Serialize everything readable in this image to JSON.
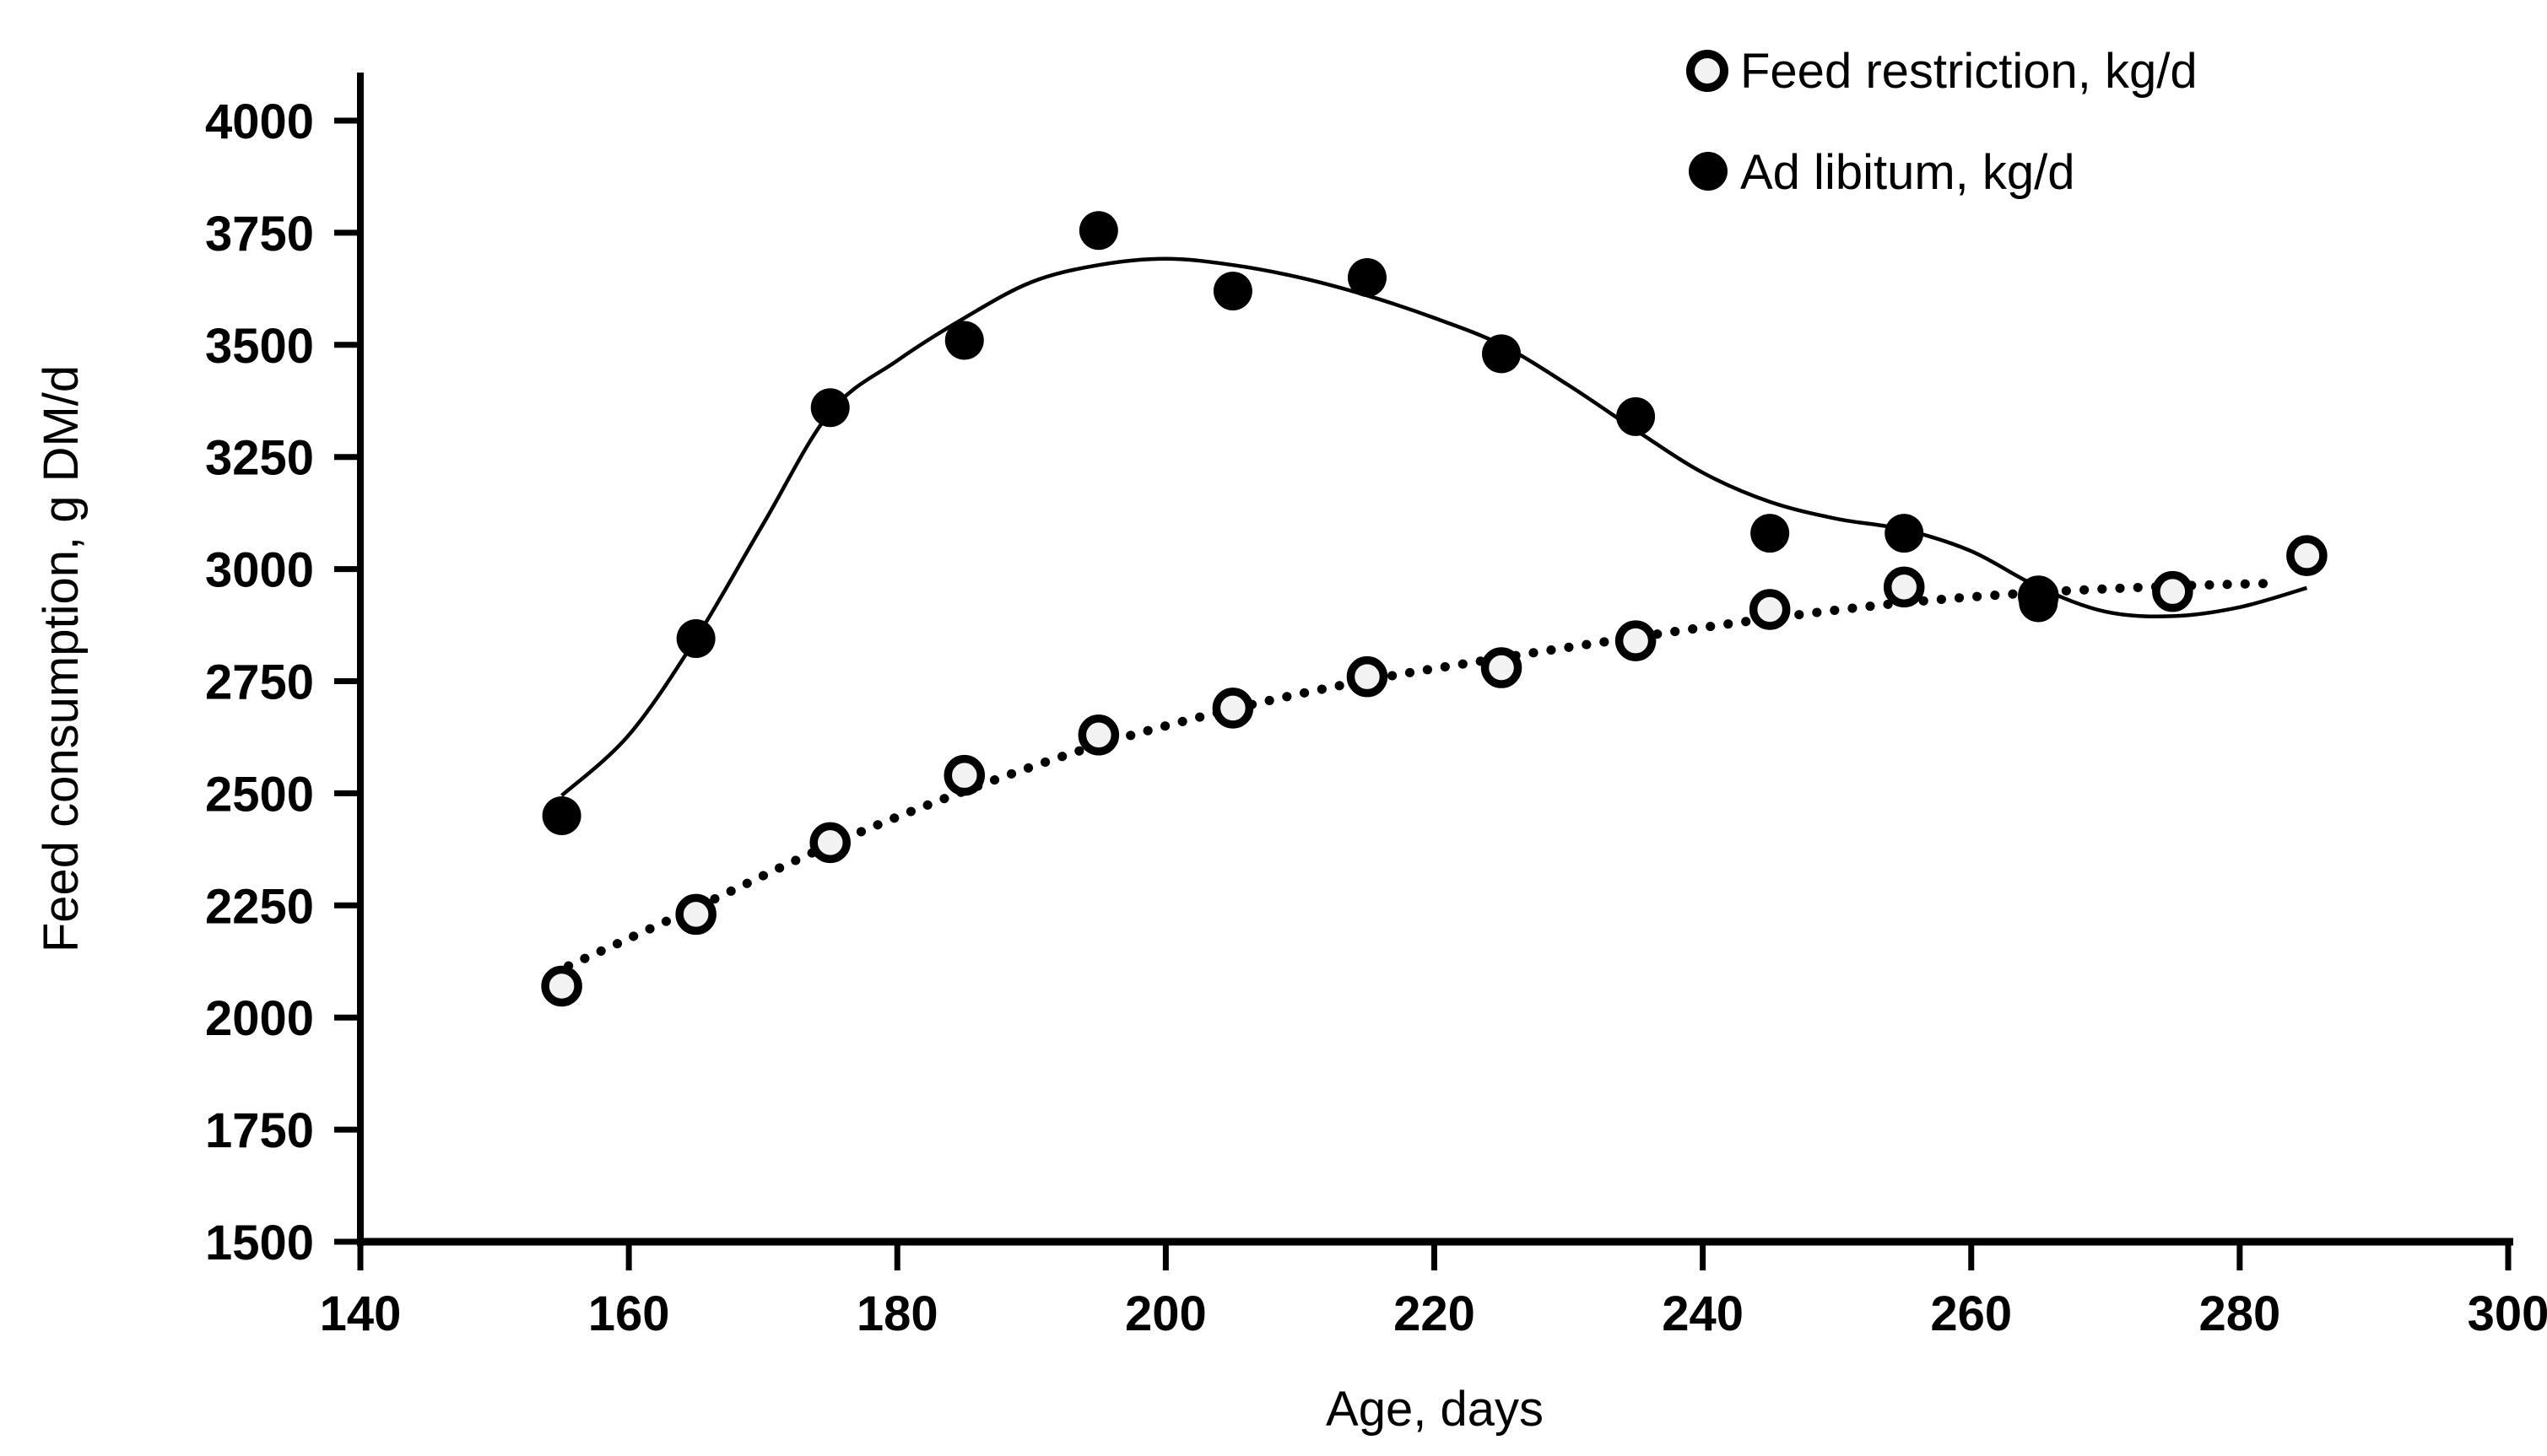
{
  "chart_data": {
    "type": "scatter",
    "title": "",
    "xlabel": "Age, days",
    "ylabel": "Feed consumption, g DM/d",
    "xlim": [
      140,
      300
    ],
    "ylim": [
      1500,
      4100
    ],
    "x_ticks": [
      140,
      160,
      180,
      200,
      220,
      240,
      260,
      280,
      300
    ],
    "y_ticks": [
      1500,
      1750,
      2000,
      2250,
      2500,
      2750,
      3000,
      3250,
      3500,
      3750,
      4000
    ],
    "grid": false,
    "legend_position": "top-right",
    "series": [
      {
        "name": "Feed restriction, kg/d",
        "marker": "open-circle",
        "trend_style": "dotted",
        "x": [
          155,
          165,
          175,
          185,
          195,
          205,
          215,
          225,
          235,
          245,
          255,
          265,
          275,
          285
        ],
        "y": [
          2070,
          2230,
          2390,
          2540,
          2630,
          2690,
          2760,
          2780,
          2840,
          2910,
          2960,
          2940,
          2950,
          3030
        ]
      },
      {
        "name": "Ad libitum, kg/d",
        "marker": "filled-circle",
        "trend_style": "solid",
        "x": [
          155,
          165,
          175,
          185,
          195,
          205,
          215,
          225,
          235,
          245,
          255,
          265
        ],
        "y": [
          2450,
          2845,
          3360,
          3510,
          3755,
          3620,
          3650,
          3480,
          3340,
          3080,
          3080,
          2925
        ]
      }
    ],
    "trend_curves": [
      {
        "series": "Feed restriction, kg/d",
        "style": "dotted",
        "points": [
          [
            155.5,
            2115
          ],
          [
            165,
            2245
          ],
          [
            175,
            2385
          ],
          [
            185,
            2505
          ],
          [
            195,
            2608
          ],
          [
            205,
            2688
          ],
          [
            215,
            2752
          ],
          [
            225,
            2802
          ],
          [
            235,
            2848
          ],
          [
            245,
            2890
          ],
          [
            255,
            2925
          ],
          [
            265,
            2948
          ],
          [
            275,
            2962
          ],
          [
            282,
            2968
          ]
        ]
      },
      {
        "series": "Ad libitum, kg/d",
        "style": "solid",
        "points": [
          [
            155,
            2495
          ],
          [
            160,
            2630
          ],
          [
            165,
            2845
          ],
          [
            170,
            3100
          ],
          [
            175,
            3350
          ],
          [
            180,
            3465
          ],
          [
            185,
            3560
          ],
          [
            190,
            3640
          ],
          [
            195,
            3678
          ],
          [
            200,
            3692
          ],
          [
            205,
            3678
          ],
          [
            210,
            3650
          ],
          [
            215,
            3610
          ],
          [
            220,
            3560
          ],
          [
            225,
            3500
          ],
          [
            230,
            3410
          ],
          [
            235,
            3310
          ],
          [
            240,
            3215
          ],
          [
            245,
            3150
          ],
          [
            250,
            3112
          ],
          [
            255,
            3088
          ],
          [
            260,
            3040
          ],
          [
            265,
            2960
          ],
          [
            270,
            2905
          ],
          [
            275,
            2895
          ],
          [
            280,
            2915
          ],
          [
            285,
            2958
          ]
        ]
      }
    ]
  },
  "legend": {
    "items": [
      {
        "label": "Feed restriction, kg/d",
        "marker": "open-circle"
      },
      {
        "label": "Ad libitum, kg/d",
        "marker": "filled-circle"
      }
    ]
  },
  "colors": {
    "foreground": "#000000",
    "background": "#ffffff",
    "open_marker_fill": "#f2f2f2"
  }
}
